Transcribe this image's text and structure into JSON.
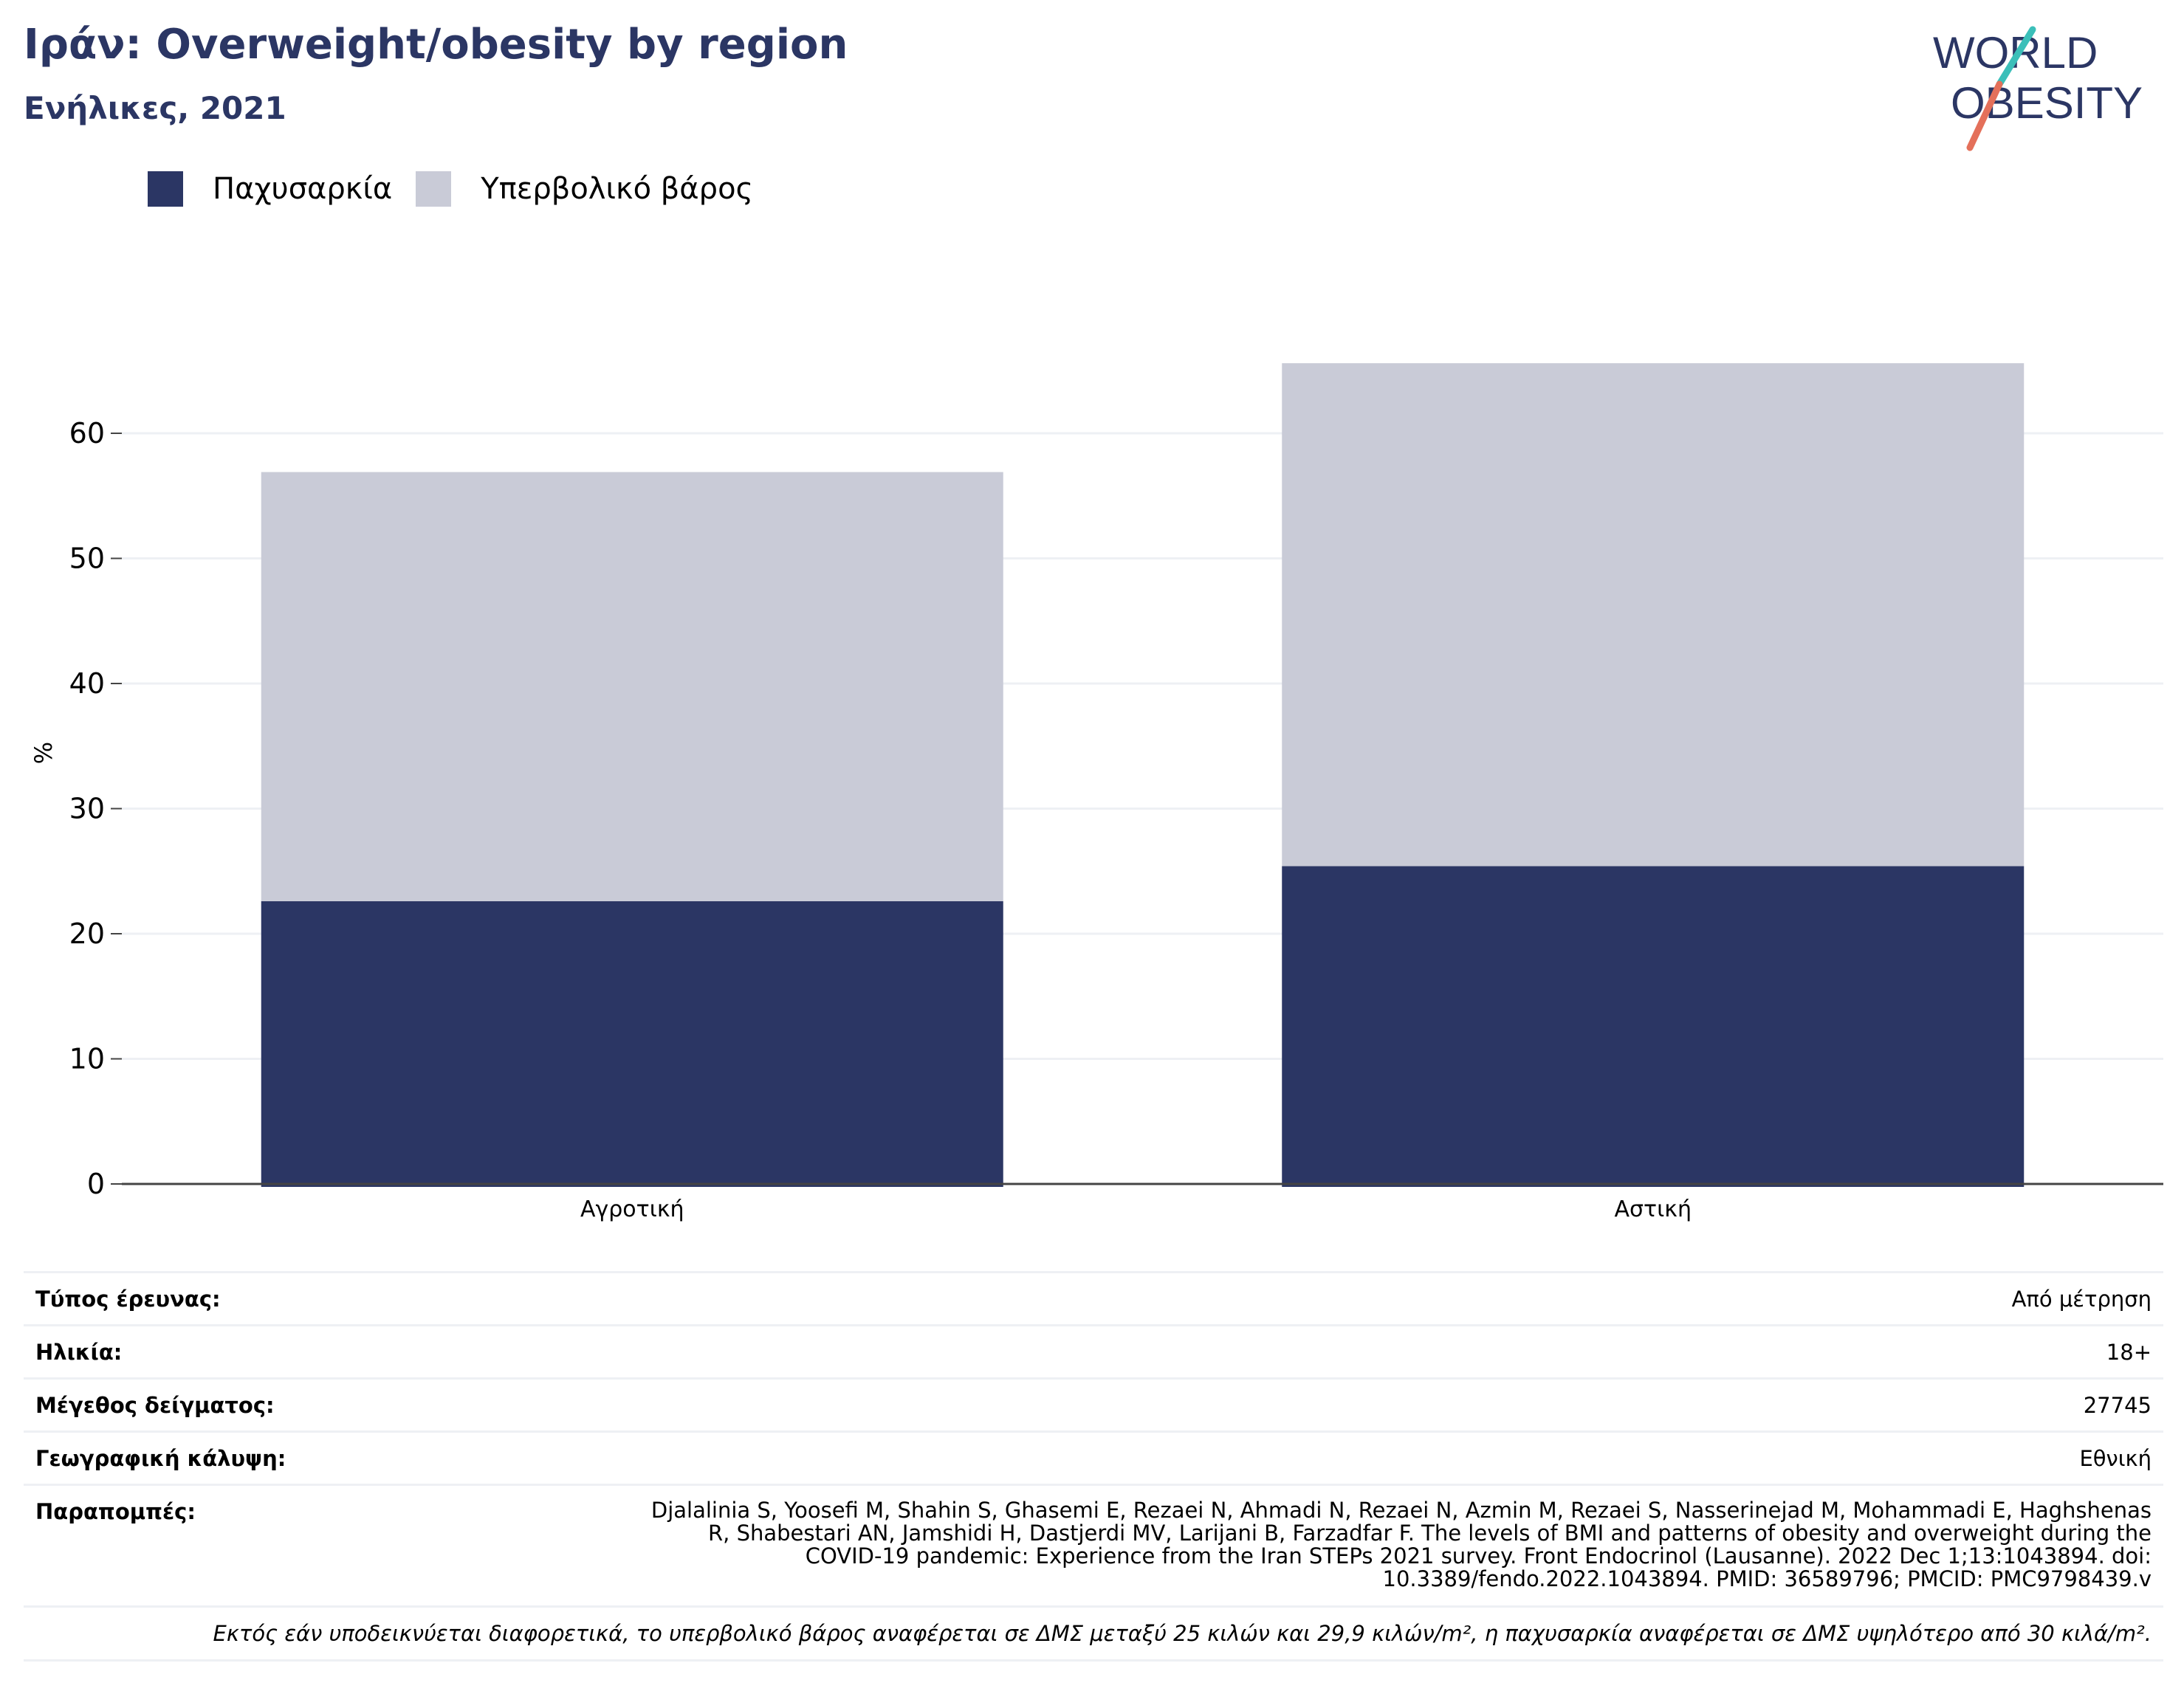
{
  "header": {
    "title": "Ιράν: Overweight/obesity by region",
    "subtitle": "Ενήλικες, 2021"
  },
  "logo": {
    "line1": "WORLD",
    "line2": "OBESITY"
  },
  "colors": {
    "obesity": "#2b3664",
    "overweight": "#c9cbd7",
    "title": "#2b3664",
    "logo_teal": "#3bbfb9",
    "logo_coral": "#e4705a",
    "grid": "#eef0f4",
    "axis": "#444444"
  },
  "legend": [
    {
      "label": "Παχυσαρκία",
      "color": "#2b3664"
    },
    {
      "label": "Υπερβολικό βάρος",
      "color": "#c9cbd7"
    }
  ],
  "chart_data": {
    "type": "bar",
    "stacked": true,
    "categories": [
      "Αγροτική",
      "Αστική"
    ],
    "series": [
      {
        "name": "Παχυσαρκία",
        "values": [
          22.6,
          25.4
        ]
      },
      {
        "name": "Υπερβολικό βάρος",
        "values": [
          34.3,
          40.2
        ]
      }
    ],
    "ylabel": "%",
    "ylim": [
      0,
      70
    ],
    "yticks": [
      0,
      10,
      20,
      30,
      40,
      50,
      60
    ],
    "grid": true
  },
  "info": {
    "rows": [
      {
        "key": "Τύπος έρευνας:",
        "value": "Από μέτρηση"
      },
      {
        "key": "Ηλικία:",
        "value": "18+"
      },
      {
        "key": "Μέγεθος δείγματος:",
        "value": "27745"
      },
      {
        "key": "Γεωγραφική κάλυψη:",
        "value": "Εθνική"
      }
    ],
    "references_key": "Παραπομπές:",
    "references_lines": [
      "Djalalinia S, Yoosefi M, Shahin S, Ghasemi E, Rezaei N, Ahmadi N, Rezaei N, Azmin M, Rezaei S, Nasserinejad M, Mohammadi E, Haghshenas",
      "R, Shabestari AN, Jamshidi H, Dastjerdi MV, Larijani B, Farzadfar F. The levels of BMI and patterns of obesity and overweight during the",
      "COVID-19 pandemic: Experience from the Iran STEPs 2021 survey. Front Endocrinol (Lausanne). 2022 Dec 1;13:1043894. doi:",
      "10.3389/fendo.2022.1043894. PMID: 36589796; PMCID: PMC9798439.v"
    ],
    "note": "Εκτός εάν υποδεικνύεται διαφορετικά, το υπερβολικό βάρος αναφέρεται σε ΔΜΣ μεταξύ 25 κιλών και 29,9 κιλών/m², η παχυσαρκία αναφέρεται σε ΔΜΣ υψηλότερο από 30 κιλά/m²."
  }
}
